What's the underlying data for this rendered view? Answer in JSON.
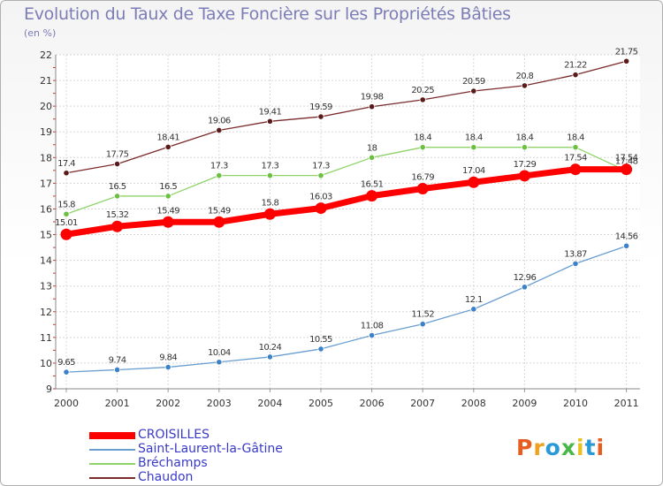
{
  "title": "Evolution du Taux de Taxe Foncière sur les Propriétés Bâties",
  "unit": "(en %)",
  "logo": "Proxiti",
  "chart_data": {
    "type": "line",
    "x": [
      "2000",
      "2001",
      "2002",
      "2003",
      "2004",
      "2005",
      "2006",
      "2007",
      "2008",
      "2009",
      "2010",
      "2011"
    ],
    "ylim": [
      9,
      22
    ],
    "yticks": [
      9,
      10,
      11,
      12,
      13,
      14,
      15,
      16,
      17,
      18,
      19,
      20,
      21,
      22
    ],
    "grid": true,
    "legend_position": "bottom-left",
    "series": [
      {
        "name": "Chaudon",
        "color": "#7a2a2a",
        "marker": "#5a1a1a",
        "values": [
          17.4,
          17.75,
          18.41,
          19.06,
          19.41,
          19.59,
          19.98,
          20.25,
          20.59,
          20.8,
          21.22,
          21.75
        ],
        "labels": [
          "17.4",
          "17.75",
          "18.41",
          "19.06",
          "19.41",
          "19.59",
          "19.98",
          "20.25",
          "20.59",
          "20.8",
          "21.22",
          "21.75"
        ]
      },
      {
        "name": "Bréchamps",
        "color": "#8ed36a",
        "marker": "#6cc040",
        "values": [
          15.8,
          16.5,
          16.5,
          17.3,
          17.3,
          17.3,
          18,
          18.4,
          18.4,
          18.4,
          18.4,
          17.48
        ],
        "labels": [
          "15.8",
          "16.5",
          "16.5",
          "17.3",
          "17.3",
          "17.3",
          "18",
          "18.4",
          "18.4",
          "18.4",
          "18.4",
          "17.48"
        ]
      },
      {
        "name": "Saint-Laurent-la-Gâtine",
        "color": "#6a9ed0",
        "marker": "#3d82c8",
        "values": [
          9.65,
          9.74,
          9.84,
          10.04,
          10.24,
          10.55,
          11.08,
          11.52,
          12.1,
          12.96,
          13.87,
          14.56
        ],
        "labels": [
          "9.65",
          "9.74",
          "9.84",
          "10.04",
          "10.24",
          "10.55",
          "11.08",
          "11.52",
          "12.1",
          "12.96",
          "13.87",
          "14.56"
        ]
      },
      {
        "name": "CROISILLES",
        "color": "#ff0000",
        "marker": "#ff0000",
        "thick": true,
        "values": [
          15.01,
          15.32,
          15.49,
          15.49,
          15.8,
          16.03,
          16.51,
          16.79,
          17.04,
          17.29,
          17.54,
          17.54
        ],
        "labels": [
          "15.01",
          "15.32",
          "15.49",
          "15.49",
          "15.8",
          "16.03",
          "16.51",
          "16.79",
          "17.04",
          "17.29",
          "17.54",
          "17.54"
        ]
      }
    ]
  },
  "legend": [
    {
      "name": "CROISILLES",
      "color": "#ff0000",
      "thick": true
    },
    {
      "name": "Saint-Laurent-la-Gâtine",
      "color": "#6a9ed0"
    },
    {
      "name": "Bréchamps",
      "color": "#8ed36a"
    },
    {
      "name": "Chaudon",
      "color": "#7a2a2a"
    }
  ]
}
